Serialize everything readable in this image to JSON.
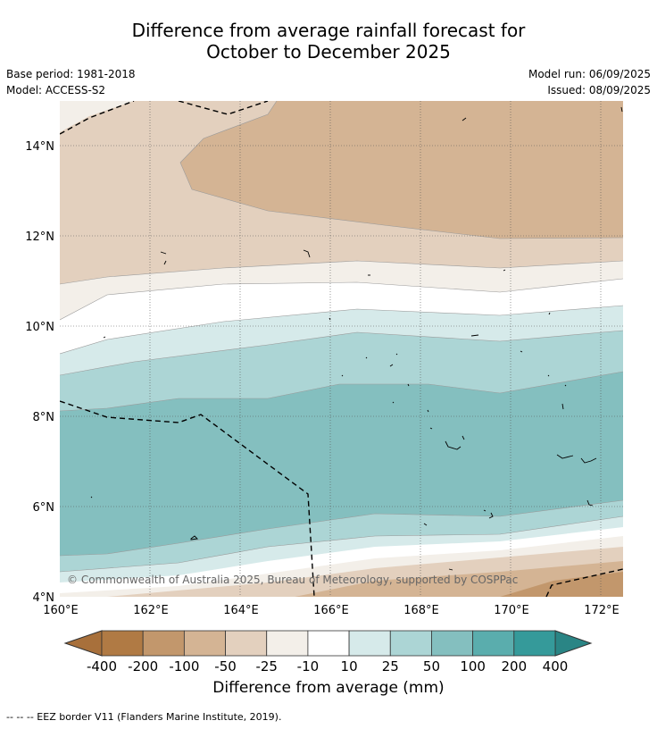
{
  "title_line1": "Difference from average rainfall forecast for",
  "title_line2": "October to December 2025",
  "base_period": "Base period: 1981-2018",
  "model": "Model: ACCESS-S2",
  "model_run": "Model run: 06/09/2025",
  "issued": "Issued: 08/09/2025",
  "map": {
    "y_ticks": [
      "14°N",
      "12°N",
      "10°N",
      "8°N",
      "6°N",
      "4°N"
    ],
    "x_ticks": [
      "160°E",
      "162°E",
      "164°E",
      "166°E",
      "168°E",
      "170°E",
      "172°E"
    ],
    "copyright": "© Commonwealth of Australia 2025, Bureau of Meteorology, supported by COSPPac"
  },
  "colorbar": {
    "title": "Difference from average (mm)",
    "tick_labels": [
      "-400",
      "-200",
      "-100",
      "-50",
      "-25",
      "-10",
      "10",
      "25",
      "50",
      "100",
      "200",
      "400"
    ],
    "colors": [
      "#a8703b",
      "#b07a44",
      "#c2976c",
      "#d4b494",
      "#e3d0be",
      "#f3efe9",
      "#ffffff",
      "#d6eaea",
      "#acd5d5",
      "#84bfbf",
      "#5aadad",
      "#359a9a",
      "#2a8585"
    ]
  },
  "footnote": "--  --  -- EEZ border V11 (Flanders Marine Institute, 2019)."
}
